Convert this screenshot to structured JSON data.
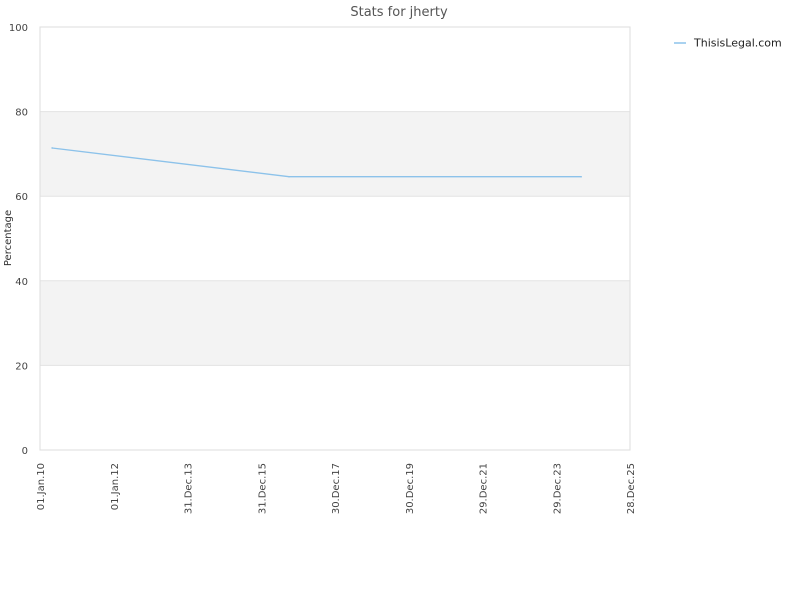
{
  "chart_data": {
    "type": "line",
    "title": "Stats for jherty",
    "xlabel": "",
    "ylabel": "Percentage",
    "ylim": [
      0,
      100
    ],
    "yticks": [
      0,
      20,
      40,
      60,
      80,
      100
    ],
    "xlim": [
      "2010-01-01",
      "2025-12-28"
    ],
    "xticks": [
      {
        "date": "2010-01-01",
        "label": "01.Jan.10"
      },
      {
        "date": "2012-01-01",
        "label": "01.Jan.12"
      },
      {
        "date": "2013-12-31",
        "label": "31.Dec.13"
      },
      {
        "date": "2015-12-31",
        "label": "31.Dec.15"
      },
      {
        "date": "2017-12-30",
        "label": "30.Dec.17"
      },
      {
        "date": "2019-12-30",
        "label": "30.Dec.19"
      },
      {
        "date": "2021-12-29",
        "label": "29.Dec.21"
      },
      {
        "date": "2023-12-29",
        "label": "29.Dec.23"
      },
      {
        "date": "2025-12-28",
        "label": "28.Dec.25"
      }
    ],
    "grid": true,
    "legend_position": "top-right",
    "series": [
      {
        "name": "ThisisLegal.com",
        "color": "#8cc2ea",
        "points": [
          {
            "x": "2010-05-01",
            "y": 71.4
          },
          {
            "x": "2016-10-01",
            "y": 64.6
          },
          {
            "x": "2024-09-01",
            "y": 64.6
          }
        ]
      }
    ]
  }
}
